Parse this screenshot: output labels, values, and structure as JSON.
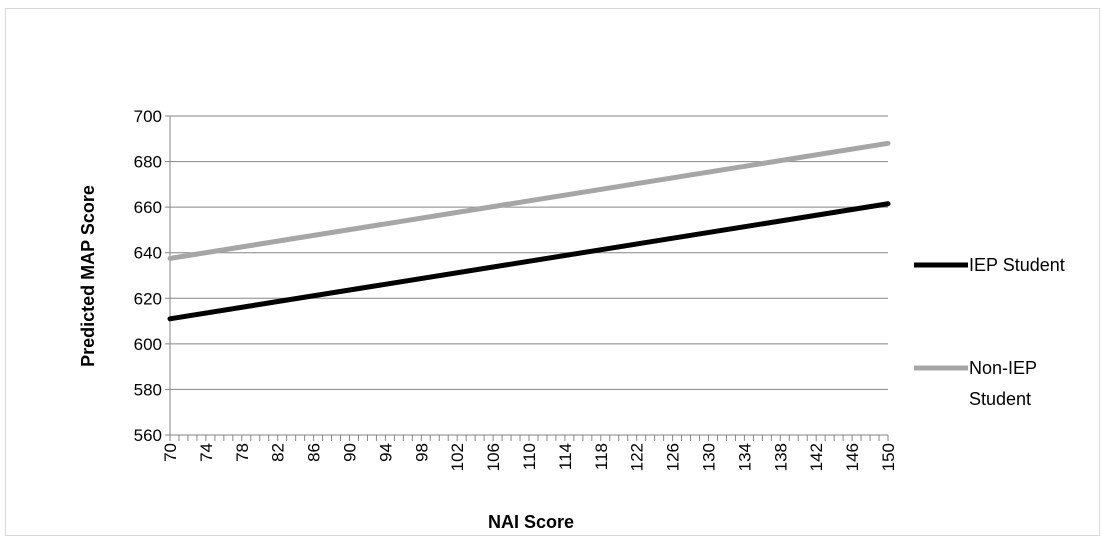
{
  "chart_data": {
    "type": "line",
    "title": "",
    "xlabel": "NAI Score",
    "ylabel": "Predicted MAP Score",
    "x": [
      70,
      150
    ],
    "x_tick_labels": [
      "70",
      "74",
      "78",
      "82",
      "86",
      "90",
      "94",
      "98",
      "102",
      "106",
      "110",
      "114",
      "118",
      "122",
      "126",
      "130",
      "134",
      "138",
      "142",
      "146",
      "150"
    ],
    "y_tick_labels": [
      "560",
      "580",
      "600",
      "620",
      "640",
      "660",
      "680",
      "700"
    ],
    "xlim": [
      70,
      150
    ],
    "ylim": [
      560,
      700
    ],
    "grid": "horizontal",
    "legend_position": "right",
    "series": [
      {
        "name": "IEP Student",
        "color": "#000000",
        "values": [
          611,
          661.5
        ]
      },
      {
        "name": "Non-IEP Student",
        "color": "#a6a6a6",
        "values": [
          637.5,
          688
        ]
      }
    ]
  },
  "legend": {
    "iep_label": "IEP Student",
    "non_iep_label_line1": "Non-IEP",
    "non_iep_label_line2": "Student"
  }
}
